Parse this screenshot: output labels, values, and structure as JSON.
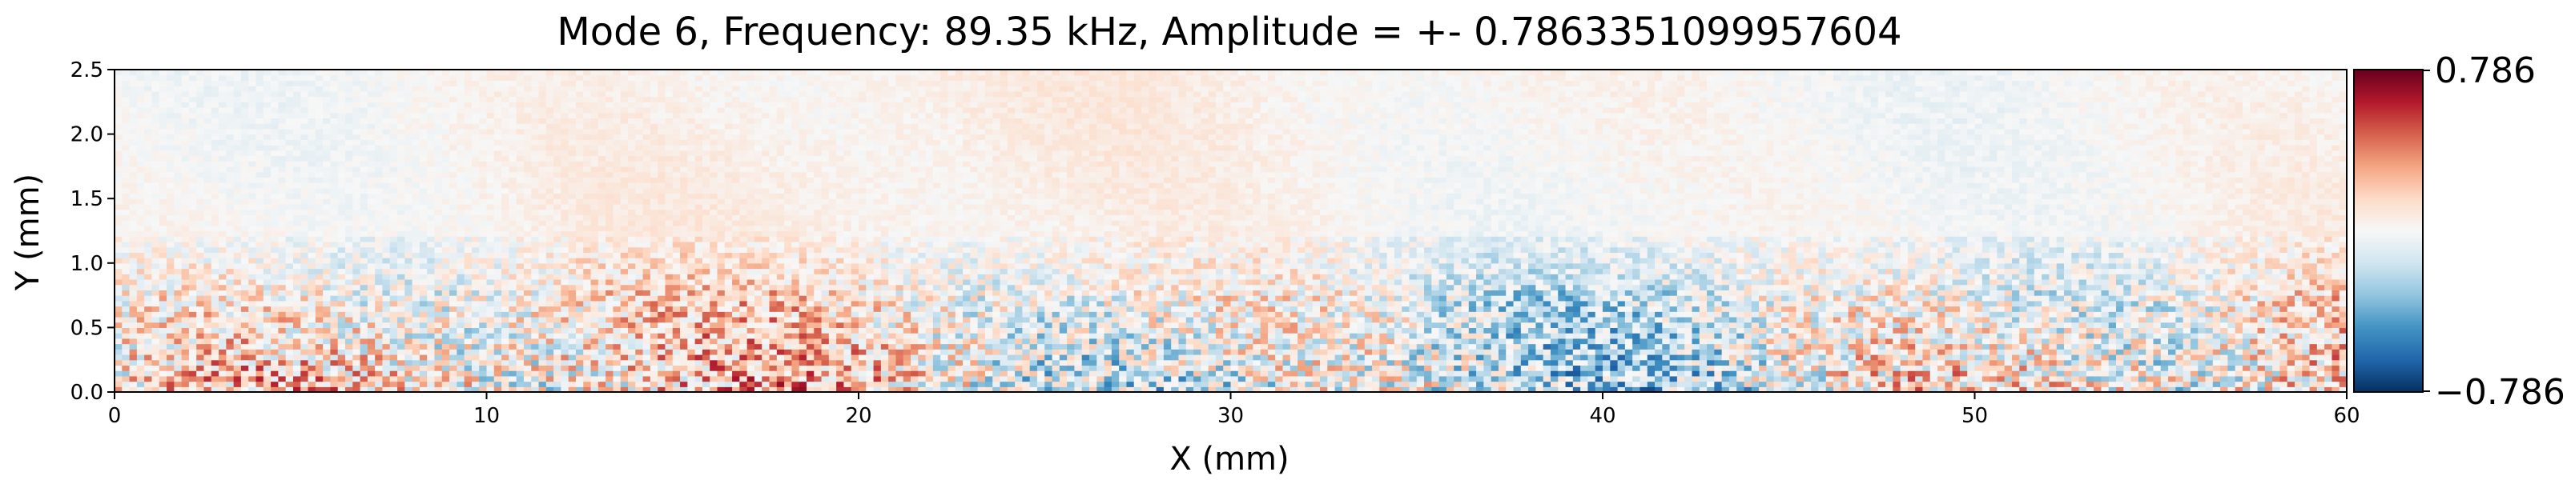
{
  "chart_data": {
    "type": "heatmap",
    "title": "Mode 6, Frequency: 89.35 kHz, Amplitude = +- 0.7863351099957604",
    "xlabel": "X (mm)",
    "ylabel": "Y (mm)",
    "xlim": [
      0,
      60
    ],
    "ylim": [
      0,
      2.5
    ],
    "x_ticks": [
      "0",
      "10",
      "20",
      "30",
      "40",
      "50",
      "60"
    ],
    "x_tick_values": [
      0,
      10,
      20,
      30,
      40,
      50,
      60
    ],
    "y_ticks": [
      "0.0",
      "0.5",
      "1.0",
      "1.5",
      "2.0",
      "2.5"
    ],
    "y_tick_values": [
      0.0,
      0.5,
      1.0,
      1.5,
      2.0,
      2.5
    ],
    "colormap": "RdBu_r",
    "vmin": -0.786,
    "vmax": 0.786,
    "colorbar": {
      "max_label": "0.786",
      "min_label": "−0.786"
    },
    "colors": {
      "low": "#053061",
      "mid": "#f7f7f7",
      "high": "#67001f"
    },
    "grid": false,
    "field_description_rows": [
      {
        "y_range": [
          0.0,
          0.8
        ],
        "pattern": "strong alternating red/blue high-frequency fluctuations, near full amplitude"
      },
      {
        "y_range": [
          0.8,
          1.2
        ],
        "pattern": "moderate fluctuations, light red and blue patches"
      },
      {
        "y_range": [
          1.2,
          2.5
        ],
        "pattern": "weak, mostly near-zero with faint red blotches"
      }
    ]
  }
}
